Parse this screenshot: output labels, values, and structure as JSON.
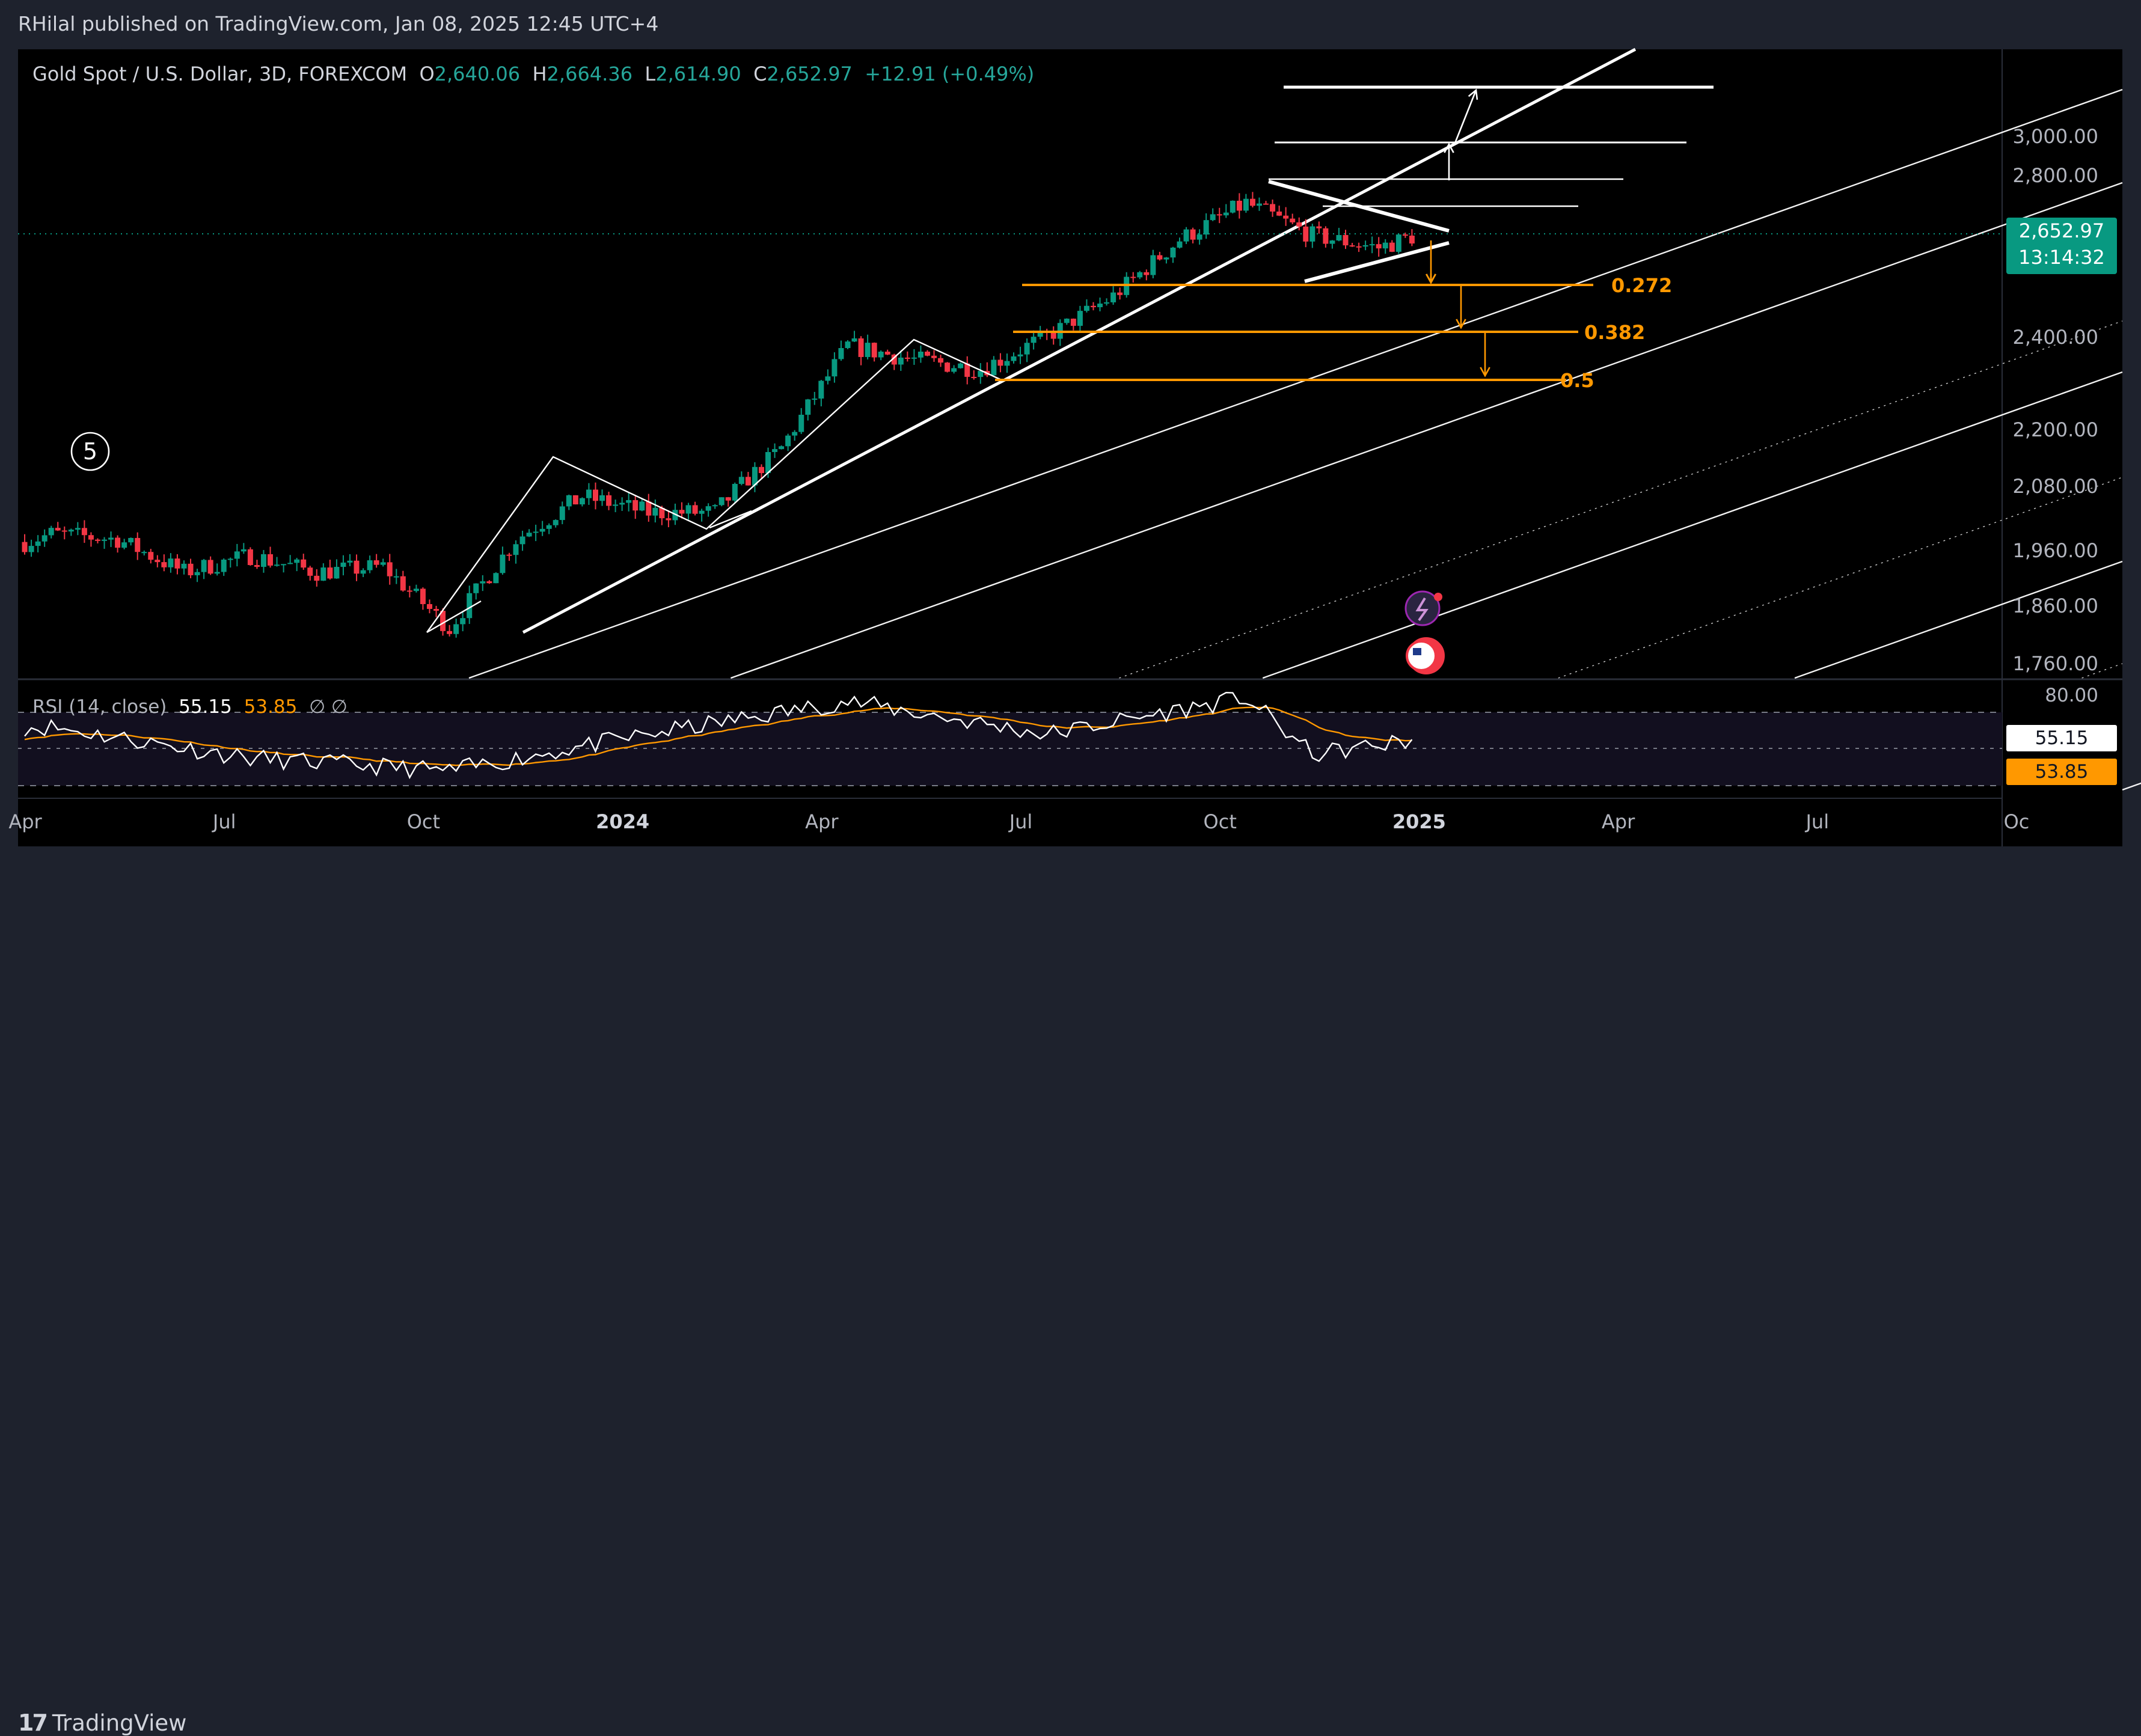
{
  "publisher": "RHilal published on TradingView.com, Jan 08, 2025 12:45 UTC+4",
  "legend": {
    "symbol": "Gold Spot / U.S. Dollar, 3D, FOREXCOM",
    "o_label": "O",
    "o": "2,640.06",
    "h_label": "H",
    "h": "2,664.36",
    "l_label": "L",
    "l": "2,614.90",
    "c_label": "C",
    "c": "2,652.97",
    "change": "+12.91 (+0.49%)"
  },
  "price_badge": {
    "price": "2,652.97",
    "countdown": "13:14:32"
  },
  "price_axis": [
    "3,000.00",
    "2,800.00",
    "2,400.00",
    "2,200.00",
    "2,080.00",
    "1,960.00",
    "1,860.00",
    "1,760.00"
  ],
  "time_axis": [
    "Apr",
    "Jul",
    "Oct",
    "2024",
    "Apr",
    "Jul",
    "Oct",
    "2025",
    "Apr",
    "Jul",
    "Oc"
  ],
  "fib_levels": [
    "0.272",
    "0.382",
    "0.5"
  ],
  "wave_label": "5",
  "rsi": {
    "label": "RSI (14, close)",
    "value": "55.15",
    "ma": "53.85",
    "extra": "∅  ∅",
    "axis_top": "80.00"
  },
  "brand": "TradingView",
  "colors": {
    "up": "#089981",
    "down": "#f23645",
    "fib": "#ff9800",
    "background": "#000000",
    "rsi_line": "#ffffff",
    "rsi_ma": "#ff9800"
  },
  "chart_data": {
    "type": "candlestick",
    "series": [
      {
        "name": "Gold Spot / U.S. Dollar",
        "points": [
          [
            "2023-04",
            1990
          ],
          [
            "2023-05",
            1980
          ],
          [
            "2023-06",
            1920
          ],
          [
            "2023-07",
            1950
          ],
          [
            "2023-08",
            1920
          ],
          [
            "2023-09",
            1930
          ],
          [
            "2023-10",
            1820
          ],
          [
            "2023-11",
            1980
          ],
          [
            "2023-12",
            2060
          ],
          [
            "2024-01",
            2030
          ],
          [
            "2024-02",
            2030
          ],
          [
            "2024-03",
            2160
          ],
          [
            "2024-04",
            2380
          ],
          [
            "2024-05",
            2350
          ],
          [
            "2024-06",
            2330
          ],
          [
            "2024-07",
            2400
          ],
          [
            "2024-08",
            2500
          ],
          [
            "2024-09",
            2640
          ],
          [
            "2024-10",
            2730
          ],
          [
            "2024-11",
            2650
          ],
          [
            "2024-12",
            2620
          ],
          [
            "2025-01",
            2652.97
          ]
        ]
      },
      {
        "name": "RSI (14, close)",
        "points": [
          [
            "2023-04",
            62
          ],
          [
            "2023-07",
            45
          ],
          [
            "2023-10",
            38
          ],
          [
            "2024-01",
            58
          ],
          [
            "2024-04",
            76
          ],
          [
            "2024-07",
            58
          ],
          [
            "2024-10",
            78
          ],
          [
            "2024-11",
            47
          ],
          [
            "2025-01",
            55.15
          ]
        ]
      }
    ],
    "y_axis_ticks": [
      3000,
      2800,
      2400,
      2200,
      2080,
      1960,
      1860,
      1760
    ],
    "fib_retracements": [
      0.272,
      0.382,
      0.5
    ],
    "last_price": 2652.97
  }
}
